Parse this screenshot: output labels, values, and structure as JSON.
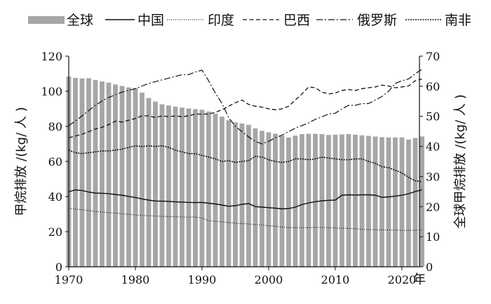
{
  "chart_data": {
    "type": "bar+line",
    "title": "",
    "xlabel": "年",
    "ylabel_left": "甲烷排放 /(kg/ 人 )",
    "ylabel_right": "全球甲烷排放 /(kg/ 人 )",
    "ylim_left": [
      0,
      120
    ],
    "ylim_right": [
      0,
      70
    ],
    "yticks_left": [
      0,
      20,
      40,
      60,
      80,
      100,
      120
    ],
    "yticks_right": [
      0,
      10,
      20,
      30,
      40,
      50,
      60,
      70
    ],
    "xticks": [
      1970,
      1980,
      1990,
      2000,
      2010,
      2020
    ],
    "xlim": [
      1970,
      2023
    ],
    "grid": false,
    "legend_position": "top",
    "legend": [
      "全球",
      "中国",
      "印度",
      "巴西",
      "俄罗斯",
      "南非"
    ],
    "bars": {
      "name": "全球",
      "axis": "right",
      "color": "#a6a6a6",
      "years": [
        1970,
        1971,
        1972,
        1973,
        1974,
        1975,
        1976,
        1977,
        1978,
        1979,
        1980,
        1981,
        1982,
        1983,
        1984,
        1985,
        1986,
        1987,
        1988,
        1989,
        1990,
        1991,
        1992,
        1993,
        1994,
        1995,
        1996,
        1997,
        1998,
        1999,
        2000,
        2001,
        2002,
        2003,
        2004,
        2005,
        2006,
        2007,
        2008,
        2009,
        2010,
        2011,
        2012,
        2013,
        2014,
        2015,
        2016,
        2017,
        2018,
        2019,
        2020,
        2021,
        2022,
        2023
      ],
      "values": [
        63.2,
        62.8,
        62.6,
        62.7,
        62.1,
        61.6,
        61.2,
        60.6,
        60.1,
        59.6,
        59.4,
        57.9,
        56.1,
        54.9,
        54.0,
        53.6,
        53.2,
        52.9,
        52.6,
        52.4,
        52.2,
        51.6,
        50.9,
        49.9,
        48.7,
        48.0,
        47.6,
        47.2,
        46.0,
        45.2,
        44.7,
        44.2,
        43.6,
        43.0,
        43.6,
        44.1,
        44.2,
        44.2,
        44.1,
        43.8,
        43.9,
        44.0,
        44.1,
        43.9,
        43.7,
        43.5,
        43.3,
        43.1,
        43.0,
        43.0,
        43.0,
        42.3,
        42.8,
        43.3
      ]
    },
    "series": [
      {
        "name": "中国",
        "axis": "left",
        "style": "solid",
        "x": [
          1970,
          1971,
          1972,
          1973,
          1974,
          1975,
          1976,
          1977,
          1978,
          1979,
          1980,
          1981,
          1982,
          1983,
          1984,
          1985,
          1986,
          1987,
          1988,
          1989,
          1990,
          1991,
          1992,
          1993,
          1994,
          1995,
          1996,
          1997,
          1998,
          1999,
          2000,
          2001,
          2002,
          2003,
          2004,
          2005,
          2006,
          2007,
          2008,
          2009,
          2010,
          2011,
          2012,
          2013,
          2014,
          2015,
          2016,
          2017,
          2018,
          2019,
          2020,
          2021,
          2022,
          2023
        ],
        "y": [
          42.8,
          43.8,
          43.5,
          42.6,
          42.0,
          41.9,
          41.7,
          41.2,
          40.8,
          40.1,
          39.5,
          38.7,
          38.0,
          37.5,
          37.4,
          37.3,
          37.0,
          36.9,
          36.7,
          36.6,
          36.7,
          36.2,
          35.8,
          35.2,
          34.5,
          34.8,
          35.6,
          36.0,
          34.3,
          34.0,
          33.7,
          33.4,
          33.0,
          33.2,
          34.0,
          35.5,
          36.4,
          37.1,
          37.6,
          37.9,
          38.0,
          40.8,
          41.0,
          40.9,
          41.0,
          41.0,
          40.8,
          39.6,
          39.8,
          40.3,
          40.8,
          41.6,
          42.9,
          43.9
        ]
      },
      {
        "name": "印度",
        "axis": "left",
        "style": "dotted",
        "x": [
          1970,
          1971,
          1972,
          1973,
          1974,
          1975,
          1976,
          1977,
          1978,
          1979,
          1980,
          1981,
          1982,
          1983,
          1984,
          1985,
          1986,
          1987,
          1988,
          1989,
          1990,
          1991,
          1992,
          1993,
          1994,
          1995,
          1996,
          1997,
          1998,
          1999,
          2000,
          2001,
          2002,
          2003,
          2004,
          2005,
          2006,
          2007,
          2008,
          2009,
          2010,
          2011,
          2012,
          2013,
          2014,
          2015,
          2016,
          2017,
          2018,
          2019,
          2020,
          2021,
          2022,
          2023
        ],
        "y": [
          33.2,
          32.9,
          32.5,
          32.0,
          31.5,
          31.2,
          30.9,
          30.6,
          30.2,
          29.9,
          29.6,
          29.3,
          29.1,
          28.9,
          28.8,
          28.6,
          28.5,
          28.4,
          28.3,
          28.4,
          27.8,
          26.3,
          25.9,
          25.6,
          25.2,
          24.8,
          24.6,
          24.4,
          24.1,
          23.8,
          23.4,
          23.1,
          22.6,
          22.4,
          22.3,
          22.3,
          22.3,
          22.5,
          22.4,
          22.3,
          22.1,
          22.0,
          21.9,
          21.7,
          21.4,
          21.2,
          21.1,
          21.0,
          21.0,
          20.9,
          20.8,
          20.7,
          20.9,
          21.1
        ]
      },
      {
        "name": "巴西",
        "axis": "left",
        "style": "dashed",
        "x": [
          1970,
          1971,
          1972,
          1973,
          1974,
          1975,
          1976,
          1977,
          1978,
          1979,
          1980,
          1981,
          1982,
          1983,
          1984,
          1985,
          1986,
          1987,
          1988,
          1989,
          1990,
          1991,
          1992,
          1993,
          1994,
          1995,
          1996,
          1997,
          1998,
          1999,
          2000,
          2001,
          2002,
          2003,
          2004,
          2005,
          2006,
          2007,
          2008,
          2009,
          2010,
          2011,
          2012,
          2013,
          2014,
          2015,
          2016,
          2017,
          2018,
          2019,
          2020,
          2021,
          2022,
          2023
        ],
        "y": [
          73.5,
          74.5,
          75.5,
          77.0,
          78.5,
          79.5,
          81.0,
          83.0,
          82.5,
          83.5,
          84.5,
          86.0,
          86.0,
          85.0,
          86.0,
          85.5,
          86.0,
          85.5,
          86.0,
          87.0,
          87.0,
          87.0,
          88.0,
          89.5,
          91.5,
          93.5,
          95.0,
          92.5,
          91.5,
          91.0,
          90.0,
          89.5,
          90.0,
          91.5,
          95.0,
          98.5,
          102.5,
          102.0,
          99.5,
          98.5,
          99.0,
          100.5,
          101.0,
          100.5,
          101.5,
          102.0,
          102.5,
          103.5,
          103.0,
          102.0,
          102.5,
          103.0,
          106.0,
          107.0
        ]
      },
      {
        "name": "俄罗斯",
        "axis": "left",
        "style": "dashdot",
        "x": [
          1970,
          1971,
          1972,
          1973,
          1974,
          1975,
          1976,
          1977,
          1978,
          1979,
          1980,
          1981,
          1982,
          1983,
          1984,
          1985,
          1986,
          1987,
          1988,
          1989,
          1990,
          1991,
          1992,
          1993,
          1994,
          1995,
          1996,
          1997,
          1998,
          1999,
          2000,
          2001,
          2002,
          2003,
          2004,
          2005,
          2006,
          2007,
          2008,
          2009,
          2010,
          2011,
          2012,
          2013,
          2014,
          2015,
          2016,
          2017,
          2018,
          2019,
          2020,
          2021,
          2022,
          2023
        ],
        "y": [
          80.5,
          83.0,
          86.0,
          89.0,
          92.0,
          94.5,
          96.5,
          98.0,
          99.5,
          100.5,
          101.5,
          103.0,
          104.5,
          105.5,
          106.5,
          107.5,
          108.5,
          109.5,
          109.5,
          111.0,
          112.0,
          106.0,
          99.0,
          93.0,
          85.0,
          80.0,
          77.0,
          74.0,
          71.5,
          70.0,
          71.5,
          73.5,
          75.0,
          77.0,
          79.0,
          80.5,
          82.0,
          84.0,
          85.5,
          87.0,
          87.5,
          90.0,
          92.0,
          92.0,
          93.0,
          93.0,
          95.0,
          97.0,
          100.0,
          104.5,
          106.0,
          107.0,
          110.0,
          112.5
        ]
      },
      {
        "name": "南非",
        "axis": "left",
        "style": "dense-dotted",
        "x": [
          1970,
          1971,
          1972,
          1973,
          1974,
          1975,
          1976,
          1977,
          1978,
          1979,
          1980,
          1981,
          1982,
          1983,
          1984,
          1985,
          1986,
          1987,
          1988,
          1989,
          1990,
          1991,
          1992,
          1993,
          1994,
          1995,
          1996,
          1997,
          1998,
          1999,
          2000,
          2001,
          2002,
          2003,
          2004,
          2005,
          2006,
          2007,
          2008,
          2009,
          2010,
          2011,
          2012,
          2013,
          2014,
          2015,
          2016,
          2017,
          2018,
          2019,
          2020,
          2021,
          2022,
          2023
        ],
        "y": [
          66.5,
          65.0,
          64.5,
          65.0,
          65.5,
          66.0,
          66.0,
          66.5,
          67.0,
          68.0,
          69.0,
          68.5,
          69.0,
          68.5,
          69.0,
          68.0,
          66.5,
          65.5,
          64.5,
          64.5,
          63.5,
          62.5,
          61.5,
          60.0,
          60.5,
          59.5,
          60.0,
          60.5,
          63.0,
          62.5,
          61.0,
          60.0,
          59.5,
          60.0,
          61.5,
          61.5,
          61.0,
          61.5,
          62.5,
          62.0,
          61.5,
          61.0,
          61.0,
          61.5,
          61.5,
          60.0,
          59.0,
          57.0,
          56.5,
          55.0,
          53.5,
          51.0,
          49.0,
          48.5
        ]
      }
    ]
  }
}
